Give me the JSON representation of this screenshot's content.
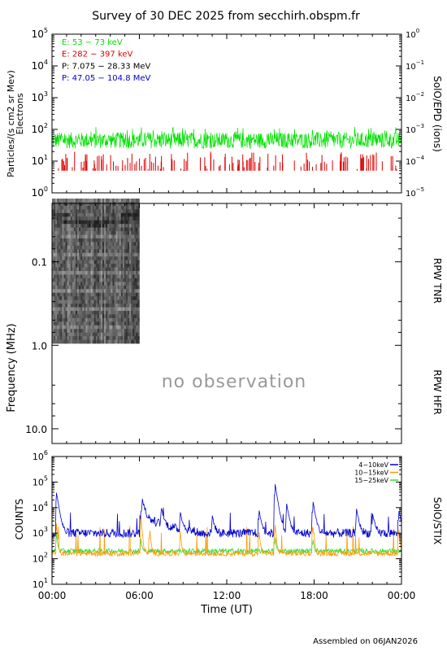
{
  "title": "Survey of 30 DEC 2025 from secchirh.obspm.fr",
  "footer": "Assembled on 06JAN2026",
  "colors": {
    "green": "#00e000",
    "red": "#dd0000",
    "black": "#000000",
    "blue": "#0000cc",
    "orange": "#ff9900",
    "stix_green": "#33dd33",
    "spectrogram": "#555555",
    "no_obs": "#999999"
  },
  "chart_data": [
    {
      "type": "line",
      "panel": "epd",
      "ylabel": "Particles/(s cm2 sr Mev)",
      "ylabel2": "Electrons",
      "right_label": "SolO/EPD (ions)",
      "yscale": "log",
      "ylim": [
        1,
        100000
      ],
      "yticks_left": [
        {
          "base": "10",
          "exp": "0"
        },
        {
          "base": "10",
          "exp": "1"
        },
        {
          "base": "10",
          "exp": "2"
        },
        {
          "base": "10",
          "exp": "3"
        },
        {
          "base": "10",
          "exp": "4"
        },
        {
          "base": "10",
          "exp": "5"
        }
      ],
      "yticks_right": [
        {
          "base": "10",
          "exp": "−5"
        },
        {
          "base": "10",
          "exp": "−4"
        },
        {
          "base": "10",
          "exp": "−3"
        },
        {
          "base": "10",
          "exp": "−2"
        },
        {
          "base": "10",
          "exp": "−1"
        },
        {
          "base": "10",
          "exp": "0"
        }
      ],
      "legend": [
        {
          "label": "E: 53 − 73 keV",
          "color": "#00e000"
        },
        {
          "label": "E: 282 − 397 keV",
          "color": "#dd0000"
        },
        {
          "label": "P: 7.075 − 28.33 MeV",
          "color": "#000000"
        },
        {
          "label": "P: 47.05 − 104.8 MeV",
          "color": "#0000cc"
        }
      ],
      "series": [
        {
          "name": "E: 53 − 73 keV",
          "typical_low": 25,
          "typical_high": 100
        },
        {
          "name": "E: 282 − 397 keV",
          "baseline": 5,
          "spike_peak": 20
        }
      ]
    },
    {
      "type": "heatmap",
      "panel": "rpw",
      "ylabel": "Frequency (MHz)",
      "right_label_top": "RPW TNR",
      "right_label_bottom": "RPW HFR",
      "yscale": "log",
      "ylim": [
        0.02,
        15
      ],
      "yticks": [
        "0.1",
        "1.0",
        "10.0"
      ],
      "x_range_hours": [
        0,
        24
      ],
      "data_hours": [
        0,
        6
      ],
      "data_freq_mhz": [
        0.02,
        0.95
      ],
      "annotation": "no observation"
    },
    {
      "type": "line",
      "panel": "stix",
      "ylabel": "COUNTS",
      "right_label": "SolO/STIX",
      "yscale": "log",
      "ylim": [
        10,
        1000000
      ],
      "yticks": [
        {
          "base": "10",
          "exp": "1"
        },
        {
          "base": "10",
          "exp": "2"
        },
        {
          "base": "10",
          "exp": "3"
        },
        {
          "base": "10",
          "exp": "4"
        },
        {
          "base": "10",
          "exp": "5"
        },
        {
          "base": "10",
          "exp": "6"
        }
      ],
      "xlabel": "Time (UT)",
      "xticks": [
        "00:00",
        "06:00",
        "12:00",
        "18:00",
        "00:00"
      ],
      "legend": [
        {
          "label": "4−10keV",
          "color": "#0000cc"
        },
        {
          "label": "10−15keV",
          "color": "#ff9900"
        },
        {
          "label": "15−25keV",
          "color": "#33dd33"
        }
      ],
      "series": [
        {
          "name": "4−10keV",
          "base": 1000,
          "events": [
            [
              0.3,
              40000
            ],
            [
              6.2,
              18000
            ],
            [
              7.5,
              8000
            ],
            [
              8.8,
              6000
            ],
            [
              11.0,
              4000
            ],
            [
              14.2,
              8000
            ],
            [
              15.3,
              100000
            ],
            [
              16.1,
              15000
            ],
            [
              17.9,
              20000
            ],
            [
              20.9,
              9000
            ],
            [
              22.0,
              5000
            ],
            [
              23.8,
              8000
            ]
          ]
        },
        {
          "name": "10−15keV",
          "base": 160,
          "events": [
            [
              0.3,
              2500
            ],
            [
              6.1,
              5000
            ],
            [
              6.7,
              1500
            ],
            [
              8.8,
              1200
            ],
            [
              14.2,
              1500
            ],
            [
              15.3,
              3000
            ],
            [
              17.9,
              2500
            ],
            [
              23.8,
              2000
            ]
          ]
        },
        {
          "name": "15−25keV",
          "base": 200,
          "events": [
            [
              0.3,
              900
            ],
            [
              6.1,
              400
            ],
            [
              15.3,
              700
            ],
            [
              17.9,
              600
            ]
          ]
        }
      ]
    }
  ]
}
